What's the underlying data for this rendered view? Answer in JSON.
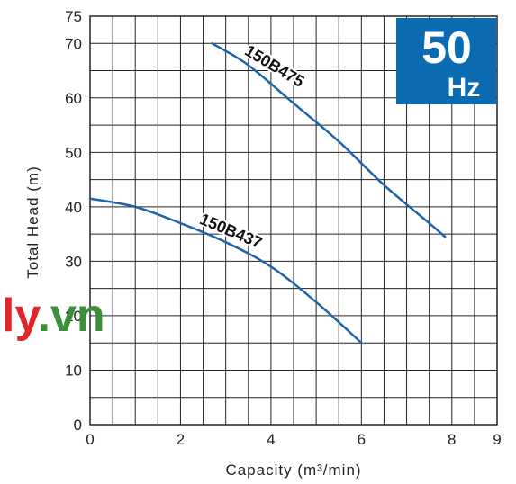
{
  "chart_data": {
    "type": "line",
    "xlabel": "Capacity (m³/min)",
    "ylabel": "Total Head (m)",
    "xlim": [
      0,
      9
    ],
    "ylim": [
      0,
      75
    ],
    "x_ticks": [
      "0",
      "2",
      "4",
      "6",
      "8",
      "9"
    ],
    "x_tick_values": [
      0,
      2,
      4,
      6,
      8,
      9
    ],
    "y_ticks": [
      "0",
      "10",
      "20",
      "30",
      "40",
      "50",
      "60",
      "70",
      "75"
    ],
    "y_tick_values": [
      0,
      10,
      20,
      30,
      40,
      50,
      60,
      70,
      75
    ],
    "x_grid_step": 0.5,
    "y_grid_step": 5,
    "grid": true,
    "series": [
      {
        "name": "150B475",
        "color": "#1f64a8",
        "x": [
          2.7,
          3.5,
          4.5,
          5.5,
          6.5,
          7.5,
          7.85
        ],
        "y": [
          70,
          66,
          59,
          52,
          44,
          37,
          34.5
        ]
      },
      {
        "name": "150B437",
        "color": "#1f64a8",
        "x": [
          0,
          1,
          2,
          3,
          4,
          5,
          6
        ],
        "y": [
          41.5,
          40,
          37,
          33.5,
          29,
          22.5,
          15
        ]
      }
    ]
  },
  "badge": {
    "frequency": "50",
    "unit": "Hz",
    "color": "#0a6bb3"
  },
  "watermark": {
    "part1": "ly",
    "part2": ".vn",
    "color1": "#e0262d",
    "color2": "#3c8f3c"
  }
}
